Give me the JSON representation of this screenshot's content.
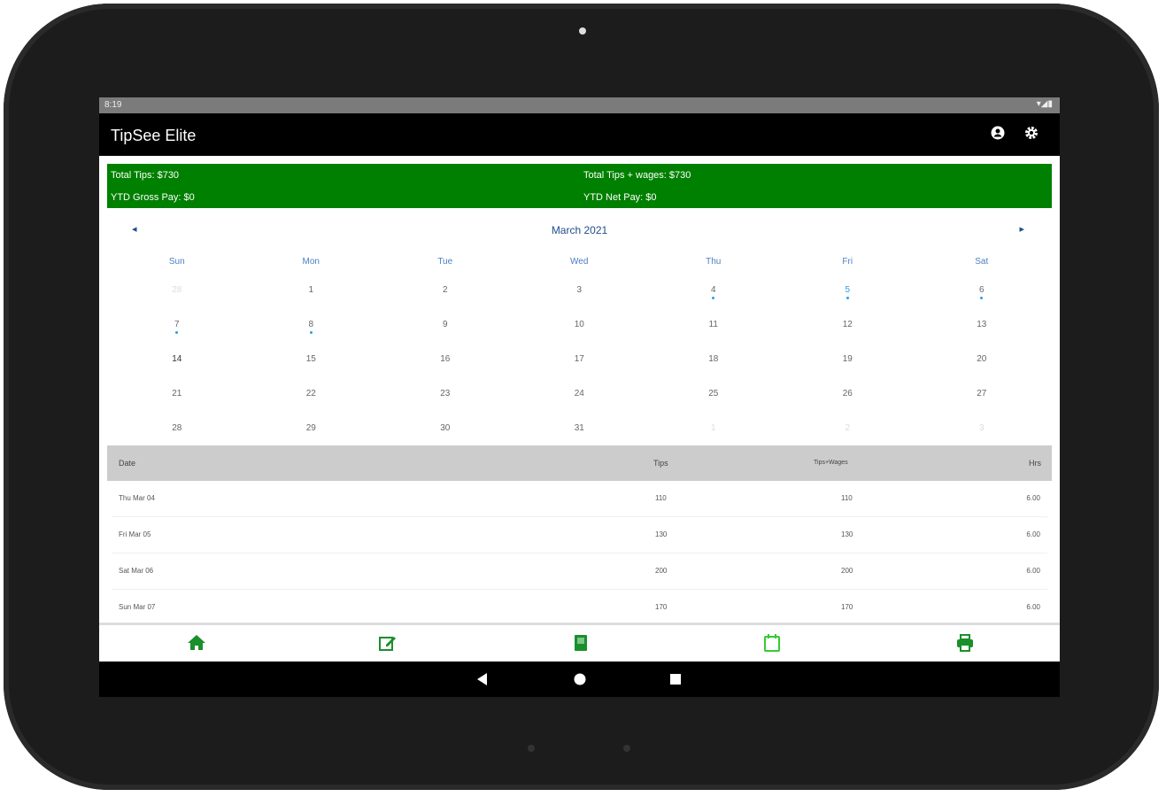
{
  "status_bar": {
    "time": "8:19",
    "icons": "▾◢▮"
  },
  "app": {
    "title": "TipSee Elite",
    "account_icon": "account-circle-icon",
    "settings_icon": "gear-icon"
  },
  "summary": {
    "total_tips": "Total Tips: $730",
    "total_tips_wages": "Total Tips + wages: $730",
    "ytd_gross": "YTD Gross Pay: $0",
    "ytd_net": "YTD Net Pay: $0",
    "background": "#008000"
  },
  "calendar": {
    "month_label": "March 2021",
    "prev": "◂",
    "next": "▸",
    "weekdays": [
      "Sun",
      "Mon",
      "Tue",
      "Wed",
      "Thu",
      "Fri",
      "Sat"
    ],
    "weeks": [
      [
        {
          "d": "28",
          "o": true
        },
        {
          "d": "1"
        },
        {
          "d": "2"
        },
        {
          "d": "3"
        },
        {
          "d": "4",
          "dot": true
        },
        {
          "d": "5",
          "dot": true,
          "sel": true
        },
        {
          "d": "6",
          "dot": true
        }
      ],
      [
        {
          "d": "7",
          "dot": true
        },
        {
          "d": "8",
          "dot": true
        },
        {
          "d": "9"
        },
        {
          "d": "10"
        },
        {
          "d": "11"
        },
        {
          "d": "12"
        },
        {
          "d": "13"
        }
      ],
      [
        {
          "d": "14"
        },
        {
          "d": "15"
        },
        {
          "d": "16"
        },
        {
          "d": "17"
        },
        {
          "d": "18"
        },
        {
          "d": "19"
        },
        {
          "d": "20"
        }
      ],
      [
        {
          "d": "21"
        },
        {
          "d": "22"
        },
        {
          "d": "23"
        },
        {
          "d": "24"
        },
        {
          "d": "25"
        },
        {
          "d": "26"
        },
        {
          "d": "27"
        }
      ],
      [
        {
          "d": "28"
        },
        {
          "d": "29"
        },
        {
          "d": "30"
        },
        {
          "d": "31"
        },
        {
          "d": "1",
          "o": true
        },
        {
          "d": "2",
          "o": true
        },
        {
          "d": "3",
          "o": true
        }
      ]
    ]
  },
  "table": {
    "headers": {
      "date": "Date",
      "tips": "Tips",
      "tips_wages": "Tips+Wages",
      "hrs": "Hrs"
    },
    "rows": [
      {
        "date": "Thu Mar 04",
        "tips": "110",
        "tips_wages": "110",
        "hrs": "6.00"
      },
      {
        "date": "Fri Mar 05",
        "tips": "130",
        "tips_wages": "130",
        "hrs": "6.00"
      },
      {
        "date": "Sat Mar 06",
        "tips": "200",
        "tips_wages": "200",
        "hrs": "6.00"
      },
      {
        "date": "Sun Mar 07",
        "tips": "170",
        "tips_wages": "170",
        "hrs": "6.00"
      }
    ]
  },
  "bottom_nav": [
    "home-icon",
    "edit-icon",
    "book-icon",
    "calendar-icon",
    "print-icon"
  ],
  "colors": {
    "accent": "#008000",
    "active_tab": "#33cc33",
    "calendar_text": "#1f4e8c"
  }
}
